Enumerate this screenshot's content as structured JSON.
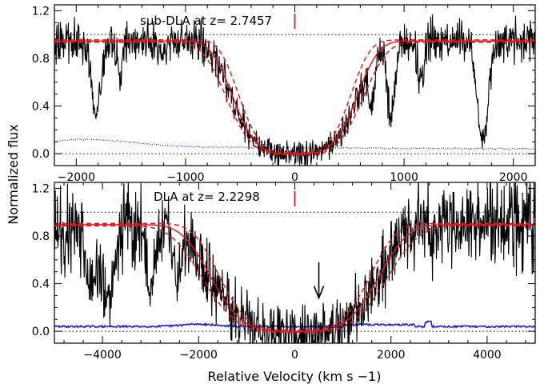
{
  "chart_data": [
    {
      "type": "line",
      "panel": "top",
      "annotation": "sub-DLA at z= 2.7457",
      "xlim": [
        -2200,
        2200
      ],
      "ylim": [
        -0.1,
        1.25
      ],
      "xticks": [
        -2000,
        -1000,
        0,
        1000,
        2000
      ],
      "xtick_labels": [
        "−2000",
        "−1000",
        "0",
        "1000",
        "2000"
      ],
      "yticks": [
        0.0,
        0.4,
        0.8,
        1.2
      ],
      "ytick_labels": [
        "0.0",
        "0.4",
        "0.8",
        "1.2"
      ],
      "reference_lines": [
        0.0,
        1.0
      ],
      "absorber_marker_x": 0,
      "model_damping_halfwidth": 620,
      "model_continuum": 0.945,
      "model_band": 0.04,
      "noise_level": 0.07,
      "narrow_absorptions": [
        {
          "x": -1820,
          "depth": 0.7,
          "width": 55
        },
        {
          "x": -1600,
          "depth": 0.3,
          "width": 40
        },
        {
          "x": -1200,
          "depth": 0.2,
          "width": 40
        },
        {
          "x": 700,
          "depth": 0.45,
          "width": 40
        },
        {
          "x": 880,
          "depth": 0.65,
          "width": 50
        },
        {
          "x": 1150,
          "depth": 0.35,
          "width": 40
        },
        {
          "x": 1720,
          "depth": 0.9,
          "width": 70
        }
      ],
      "series": [
        {
          "name": "observed flux",
          "color": "#000000"
        },
        {
          "name": "Voigt profile fit",
          "color": "#e8141c"
        },
        {
          "name": "fit uncertainty",
          "color": "#e8141c",
          "style": "dashed"
        },
        {
          "name": "error spectrum",
          "color": "#1c1cd8",
          "style": "dotted"
        }
      ]
    },
    {
      "type": "line",
      "panel": "bottom",
      "annotation": "DLA at z= 2.2298",
      "xlim": [
        -5000,
        5000
      ],
      "ylim": [
        -0.1,
        1.25
      ],
      "xticks": [
        -4000,
        -2000,
        0,
        2000,
        4000
      ],
      "xtick_labels": [
        "−4000",
        "−2000",
        "0",
        "2000",
        "4000"
      ],
      "yticks": [
        0.0,
        0.4,
        0.8,
        1.2
      ],
      "ytick_labels": [
        "0.0",
        "0.4",
        "0.8",
        "1.2"
      ],
      "reference_lines": [
        0.0,
        1.0
      ],
      "absorber_marker_x": 0,
      "arrow_x": 500,
      "model_damping_halfwidth": 1900,
      "model_continuum": 0.895,
      "model_band": 0.045,
      "noise_level": 0.15,
      "narrow_absorptions": [
        {
          "x": -4250,
          "depth": 0.6,
          "width": 150
        },
        {
          "x": -3900,
          "depth": 0.7,
          "width": 200
        },
        {
          "x": -3000,
          "depth": 0.6,
          "width": 120
        },
        {
          "x": -2450,
          "depth": 0.5,
          "width": 120
        }
      ],
      "series": [
        {
          "name": "observed flux",
          "color": "#000000"
        },
        {
          "name": "Voigt profile fit",
          "color": "#e8141c"
        },
        {
          "name": "fit uncertainty",
          "color": "#e8141c",
          "style": "dashed"
        },
        {
          "name": "error spectrum",
          "color": "#1c1cd8",
          "style": "solid"
        }
      ]
    }
  ],
  "labels": {
    "ylabel": "Normalized flux",
    "xlabel": "Relative Velocity (km s −1)"
  }
}
